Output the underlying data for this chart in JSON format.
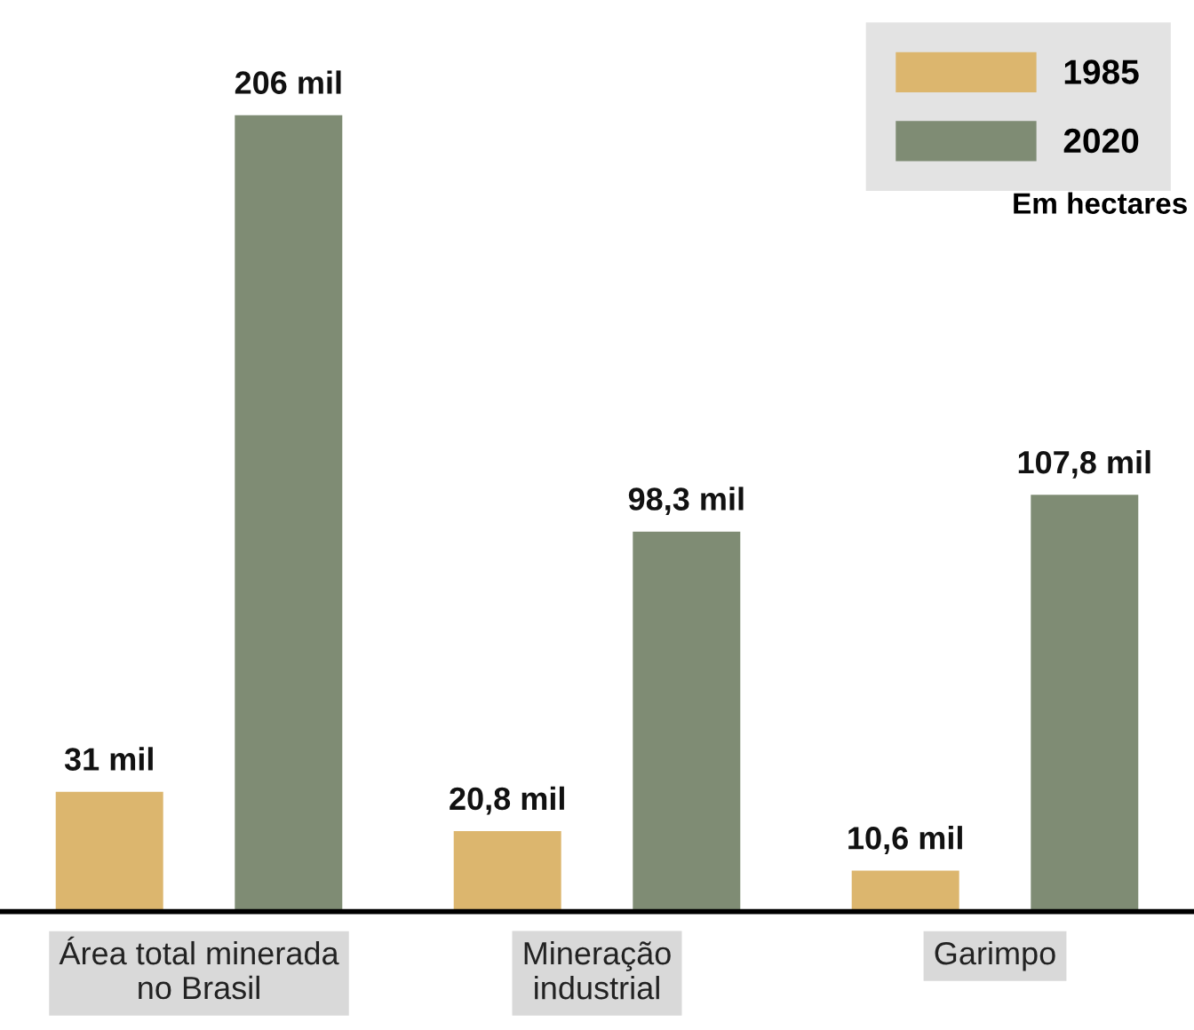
{
  "chart_data": {
    "type": "bar",
    "categories": [
      "Área total minerada\nno Brasil",
      "Mineração\nindustrial",
      "Garimpo"
    ],
    "series": [
      {
        "name": "1985",
        "color": "#dcb66e",
        "values": [
          31,
          20.8,
          10.6
        ],
        "value_labels": [
          "31 mil",
          "20,8 mil",
          "10,6 mil"
        ]
      },
      {
        "name": "2020",
        "color": "#7f8c74",
        "values": [
          206,
          98.3,
          107.8
        ],
        "value_labels": [
          "206 mil",
          "98,3 mil",
          "107,8 mil"
        ]
      }
    ],
    "annotations": [
      "Em hectares"
    ],
    "legend": "top right",
    "grid": false
  }
}
